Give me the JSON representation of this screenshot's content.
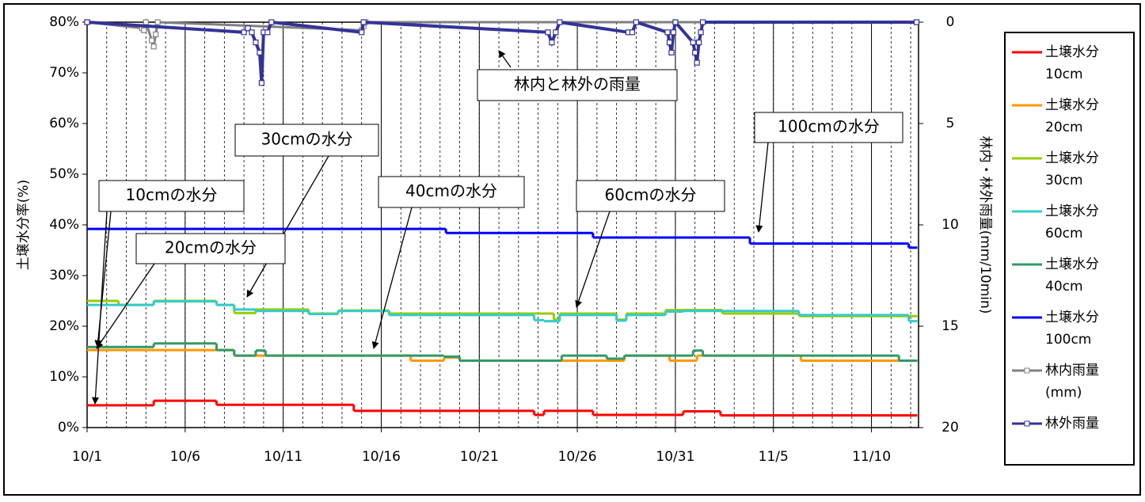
{
  "chart_data": {
    "type": "step-line",
    "ylabel": "土壌水分率(%)",
    "y2label": "林内・林外雨量(mm/10min)",
    "xlim": [
      0,
      42.4
    ],
    "xticks": [
      {
        "value": 0,
        "label": "10/1"
      },
      {
        "value": 5,
        "label": "10/6"
      },
      {
        "value": 10,
        "label": "10/11"
      },
      {
        "value": 15,
        "label": "10/16"
      },
      {
        "value": 20,
        "label": "10/21"
      },
      {
        "value": 25,
        "label": "10/26"
      },
      {
        "value": 30,
        "label": "10/31"
      },
      {
        "value": 35,
        "label": "11/5"
      },
      {
        "value": 40,
        "label": "11/10"
      }
    ],
    "ylim": [
      0,
      80
    ],
    "yticks": [
      {
        "value": 0,
        "label": "0%"
      },
      {
        "value": 10,
        "label": "10%"
      },
      {
        "value": 20,
        "label": "20%"
      },
      {
        "value": 30,
        "label": "30%"
      },
      {
        "value": 40,
        "label": "40%"
      },
      {
        "value": 50,
        "label": "50%"
      },
      {
        "value": 60,
        "label": "60%"
      },
      {
        "value": 70,
        "label": "70%"
      },
      {
        "value": 80,
        "label": "80%"
      }
    ],
    "y2lim": [
      20,
      0
    ],
    "y2ticks": [
      0,
      5,
      10,
      15,
      20
    ],
    "grid": "x",
    "legend": "right",
    "annotations": [
      "林内と林外の雨量",
      "30cmの水分",
      "100cmの水分",
      "10cmの水分",
      "40cmの水分",
      "60cmの水分",
      "20cmの水分"
    ],
    "series": [
      {
        "name": "土壌水分 10cm",
        "color": "#ff0000",
        "x": [
          0,
          3.4,
          6.6,
          13.6,
          22.8,
          23.3,
          25.8,
          30.4,
          32.3,
          42.3
        ],
        "values": [
          4.4,
          5.3,
          4.5,
          3.3,
          2.5,
          3.3,
          2.5,
          3.2,
          2.4,
          2.4
        ]
      },
      {
        "name": "土壌水分 20cm",
        "color": "#ff9900",
        "x": [
          0,
          6.6,
          7.5,
          16.5,
          18.2,
          19,
          25.8,
          27.4,
          29.7,
          31.1,
          36.4,
          42.3
        ],
        "values": [
          15.3,
          15.3,
          14.2,
          13.2,
          13.8,
          13.2,
          13.2,
          14.2,
          13.2,
          14.2,
          13.2,
          13.2
        ]
      },
      {
        "name": "土壌水分 30cm",
        "color": "#99cc00",
        "x": [
          0,
          1.6,
          3.4,
          6.6,
          7.5,
          8.6,
          11.3,
          12.8,
          15.4,
          23.8,
          24.1,
          27,
          27.5,
          29.5,
          32.4,
          36.3,
          42.3
        ],
        "values": [
          25,
          24.2,
          25,
          24.2,
          22.6,
          23.3,
          22.5,
          23.1,
          22.5,
          21.3,
          22.5,
          21.3,
          22.5,
          23.2,
          22.5,
          22.0,
          22.0
        ]
      },
      {
        "name": "土壌水分 60cm",
        "color": "#33cccc",
        "x": [
          0,
          3.4,
          6.6,
          7.5,
          8.6,
          11.3,
          12.8,
          15.4,
          22.8,
          23.3,
          24.1,
          27,
          27.5,
          29.5,
          30.4,
          36.3,
          41.9,
          42.3
        ],
        "values": [
          24.2,
          24.9,
          24.2,
          23.3,
          23.0,
          22.4,
          23.0,
          22.2,
          21.2,
          21.0,
          22.2,
          21.1,
          22.2,
          22.9,
          23.0,
          22.2,
          21.0,
          21.0
        ]
      },
      {
        "name": "土壌水分 40cm",
        "color": "#339966",
        "x": [
          0,
          3.4,
          6.6,
          7.5,
          8.6,
          9.1,
          18.2,
          19,
          24.2,
          26.5,
          27.4,
          30.9,
          31.4,
          41.4,
          42.3
        ],
        "values": [
          15.9,
          16.6,
          15.3,
          14.2,
          15.2,
          14.2,
          14.0,
          13.2,
          14.2,
          13.6,
          14.2,
          15.2,
          14.2,
          13.2,
          13.2
        ]
      },
      {
        "name": "土壌水分 100cm",
        "color": "#0000ff",
        "x": [
          0,
          18.3,
          25.8,
          33.8,
          41.9,
          42.3
        ],
        "values": [
          39.2,
          38.4,
          37.5,
          36.3,
          35.5,
          35.5
        ]
      },
      {
        "name": "林内雨量 (mm)",
        "color": "#808080",
        "axis": "y2",
        "x": [
          0,
          2.8,
          2.9,
          3.0,
          3.3,
          3.4,
          3.5,
          3.6,
          14.0,
          14.1,
          14.2,
          42.3
        ],
        "values": [
          0,
          0.3,
          0.4,
          0,
          0.9,
          1.2,
          0.6,
          0,
          0.4,
          0.2,
          0,
          0
        ]
      },
      {
        "name": "林外雨量",
        "color": "#333399",
        "axis": "y2",
        "x": [
          0,
          8.0,
          8.2,
          8.4,
          8.6,
          8.8,
          8.9,
          9.0,
          9.2,
          9.4,
          14.0,
          14.1,
          23.5,
          23.7,
          23.9,
          24.1,
          27.6,
          27.8,
          28.0,
          29.6,
          29.7,
          29.8,
          29.9,
          30.0,
          30.9,
          31.0,
          31.1,
          31.2,
          31.3,
          31.4,
          42.3
        ],
        "values": [
          0,
          0.5,
          0.3,
          0.5,
          1.0,
          1.5,
          3.0,
          0.5,
          0.5,
          0,
          0.5,
          0,
          0.5,
          1.0,
          0.5,
          0,
          0.5,
          0.5,
          0,
          0.5,
          1.0,
          1.5,
          0.5,
          0,
          1.0,
          1.5,
          2.0,
          1.0,
          0.5,
          0,
          0
        ]
      }
    ]
  }
}
